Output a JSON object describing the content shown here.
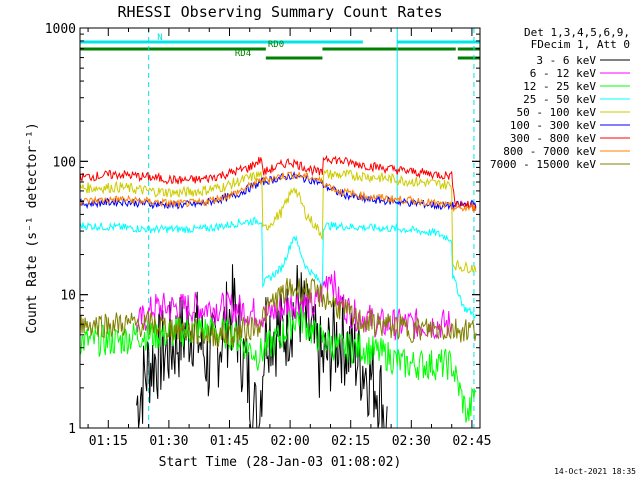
{
  "chart_data": {
    "type": "line",
    "title": "RHESSI Observing Summary Count Rates",
    "xlabel": "Start Time (28-Jan-03 01:08:02)",
    "ylabel": "Count Rate (s⁻¹ detector⁻¹)",
    "yscale": "log",
    "ylim": [
      1,
      1000
    ],
    "xlim_minutes": [
      0,
      99
    ],
    "x_ticks": [
      {
        "label": "01:15",
        "minutes": 7
      },
      {
        "label": "01:30",
        "minutes": 22
      },
      {
        "label": "01:45",
        "minutes": 37
      },
      {
        "label": "02:00",
        "minutes": 52
      },
      {
        "label": "02:15",
        "minutes": 67
      },
      {
        "label": "02:30",
        "minutes": 82
      },
      {
        "label": "02:45",
        "minutes": 97
      }
    ],
    "y_ticks": [
      {
        "label": "1",
        "value": 1
      },
      {
        "label": "10",
        "value": 10
      },
      {
        "label": "100",
        "value": 100
      },
      {
        "label": "1000",
        "value": 1000
      }
    ],
    "legend_header": [
      "Det 1,3,4,5,6,9,",
      "FDecim 1, Att 0"
    ],
    "legend_position": "right",
    "flags": [
      {
        "label": "N",
        "color": "#00e5e5",
        "segments": [
          [
            0,
            70
          ],
          [
            78.5,
            99
          ]
        ]
      },
      {
        "label": "RD0",
        "color": "#008000",
        "segments": [
          [
            0,
            46
          ],
          [
            60,
            93
          ],
          [
            93.5,
            99
          ]
        ]
      },
      {
        "label": "RD4",
        "color": "#008000",
        "segments": [
          [
            46,
            60
          ],
          [
            93.5,
            99
          ]
        ]
      }
    ],
    "night_lines_minutes": [
      0,
      17,
      78.5,
      97.5
    ],
    "series": [
      {
        "name": "3 - 6 keV",
        "color": "#000000",
        "points": [
          [
            14,
            1.5
          ],
          [
            17,
            3
          ],
          [
            22,
            4
          ],
          [
            28,
            6
          ],
          [
            32,
            3
          ],
          [
            38,
            8
          ],
          [
            42,
            2
          ],
          [
            44,
            1
          ],
          [
            46,
            6
          ],
          [
            50,
            5
          ],
          [
            54,
            9
          ],
          [
            58,
            4
          ],
          [
            60,
            3
          ],
          [
            64,
            5
          ],
          [
            70,
            3
          ],
          [
            74,
            2
          ],
          [
            76,
            1
          ]
        ]
      },
      {
        "name": "6 - 12 keV",
        "color": "#ff00ff",
        "points": [
          [
            14,
            6
          ],
          [
            17,
            7
          ],
          [
            18,
            8
          ],
          [
            30,
            8
          ],
          [
            38,
            8
          ],
          [
            46,
            7
          ],
          [
            50,
            8
          ],
          [
            54,
            9
          ],
          [
            58,
            8
          ],
          [
            62,
            15
          ],
          [
            64,
            9
          ],
          [
            68,
            7
          ],
          [
            70,
            7
          ],
          [
            74,
            6
          ],
          [
            78,
            6
          ],
          [
            90,
            6
          ],
          [
            92,
            6
          ]
        ]
      },
      {
        "name": "12 - 25 keV",
        "color": "#00ff00",
        "points": [
          [
            0,
            4.5
          ],
          [
            10,
            4.5
          ],
          [
            14,
            5
          ],
          [
            20,
            5
          ],
          [
            30,
            5.5
          ],
          [
            38,
            5
          ],
          [
            44,
            3.5
          ],
          [
            50,
            5
          ],
          [
            54,
            7
          ],
          [
            58,
            5
          ],
          [
            64,
            4
          ],
          [
            70,
            4
          ],
          [
            76,
            3.5
          ],
          [
            80,
            3
          ],
          [
            86,
            3
          ],
          [
            92,
            3
          ],
          [
            96,
            1.2
          ],
          [
            98,
            2
          ]
        ]
      },
      {
        "name": "25 - 50 keV",
        "color": "#00ffff",
        "points": [
          [
            0,
            33
          ],
          [
            10,
            32
          ],
          [
            17,
            31
          ],
          [
            24,
            31
          ],
          [
            30,
            31
          ],
          [
            36,
            33
          ],
          [
            40,
            35
          ],
          [
            45,
            36
          ],
          [
            45.2,
            12
          ],
          [
            50,
            16
          ],
          [
            53,
            28
          ],
          [
            56,
            16
          ],
          [
            60,
            12
          ],
          [
            60.2,
            33
          ],
          [
            70,
            32
          ],
          [
            80,
            31
          ],
          [
            88,
            29
          ],
          [
            92,
            26
          ],
          [
            92.2,
            14
          ],
          [
            95,
            8
          ],
          [
            98,
            7
          ]
        ]
      },
      {
        "name": "50 - 100 keV",
        "color": "#cccc00",
        "points": [
          [
            0,
            63
          ],
          [
            10,
            64
          ],
          [
            17,
            60
          ],
          [
            24,
            58
          ],
          [
            30,
            60
          ],
          [
            36,
            65
          ],
          [
            40,
            72
          ],
          [
            45,
            80
          ],
          [
            45.2,
            30
          ],
          [
            50,
            42
          ],
          [
            53,
            65
          ],
          [
            56,
            40
          ],
          [
            60,
            28
          ],
          [
            60.2,
            80
          ],
          [
            70,
            78
          ],
          [
            80,
            72
          ],
          [
            88,
            68
          ],
          [
            92,
            66
          ],
          [
            92.2,
            17
          ],
          [
            95,
            16
          ],
          [
            98,
            16
          ]
        ]
      },
      {
        "name": "100 - 300 keV",
        "color": "#0000ff",
        "points": [
          [
            0,
            48
          ],
          [
            10,
            50
          ],
          [
            17,
            48
          ],
          [
            24,
            47
          ],
          [
            30,
            48
          ],
          [
            38,
            55
          ],
          [
            45,
            70
          ],
          [
            52,
            78
          ],
          [
            58,
            72
          ],
          [
            64,
            58
          ],
          [
            70,
            52
          ],
          [
            78,
            50
          ],
          [
            85,
            48
          ],
          [
            90,
            46
          ],
          [
            94,
            47
          ],
          [
            98,
            48
          ]
        ]
      },
      {
        "name": "300 - 800 keV",
        "color": "#ff0000",
        "points": [
          [
            0,
            76
          ],
          [
            10,
            80
          ],
          [
            17,
            76
          ],
          [
            24,
            72
          ],
          [
            30,
            73
          ],
          [
            36,
            80
          ],
          [
            42,
            90
          ],
          [
            45,
            105
          ],
          [
            45.2,
            82
          ],
          [
            52,
            100
          ],
          [
            58,
            85
          ],
          [
            60,
            80
          ],
          [
            60.2,
            108
          ],
          [
            65,
            100
          ],
          [
            72,
            92
          ],
          [
            80,
            85
          ],
          [
            88,
            80
          ],
          [
            92,
            78
          ],
          [
            93,
            48
          ],
          [
            98,
            46
          ]
        ]
      },
      {
        "name": "800 - 7000 keV",
        "color": "#ff8000",
        "points": [
          [
            0,
            50
          ],
          [
            10,
            52
          ],
          [
            17,
            50
          ],
          [
            24,
            48
          ],
          [
            30,
            49
          ],
          [
            38,
            57
          ],
          [
            45,
            72
          ],
          [
            52,
            80
          ],
          [
            58,
            75
          ],
          [
            64,
            60
          ],
          [
            70,
            55
          ],
          [
            78,
            52
          ],
          [
            85,
            50
          ],
          [
            90,
            47
          ],
          [
            94,
            44
          ],
          [
            98,
            45
          ]
        ]
      },
      {
        "name": "7000 - 15000 keV",
        "color": "#808000",
        "points": [
          [
            0,
            6
          ],
          [
            10,
            6
          ],
          [
            17,
            6
          ],
          [
            24,
            5.5
          ],
          [
            32,
            5
          ],
          [
            38,
            5
          ],
          [
            44,
            6
          ],
          [
            48,
            9
          ],
          [
            52,
            11
          ],
          [
            56,
            11
          ],
          [
            62,
            9
          ],
          [
            68,
            6.5
          ],
          [
            74,
            6
          ],
          [
            82,
            5.5
          ],
          [
            90,
            5.5
          ],
          [
            98,
            5.5
          ]
        ]
      }
    ]
  },
  "footer": {
    "timestamp": "14-Oct-2021 18:35"
  }
}
